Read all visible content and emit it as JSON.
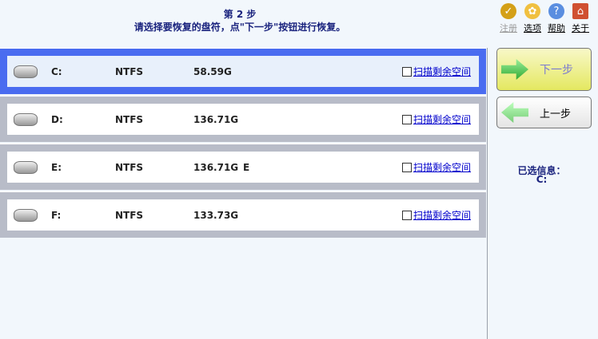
{
  "header": {
    "step": "第 2 步",
    "instruction": "请选择要恢复的盘符，点\"下一步\"按钮进行恢复。"
  },
  "toolbar": [
    {
      "label": "注册",
      "icon": "cart-icon",
      "disabled": true,
      "color": "#d4a017"
    },
    {
      "label": "选项",
      "icon": "gear-icon",
      "color": "#f0c040"
    },
    {
      "label": "帮助",
      "icon": "help-icon",
      "color": "#5a8ee0"
    },
    {
      "label": "关于",
      "icon": "home-icon",
      "color": "#d05030"
    }
  ],
  "drives": [
    {
      "letter": "C:",
      "fs": "NTFS",
      "size": "58.59G",
      "label": "",
      "scan": "扫描剩余空间",
      "selected": true,
      "checked": false
    },
    {
      "letter": "D:",
      "fs": "NTFS",
      "size": "136.71G",
      "label": "",
      "scan": "扫描剩余空间",
      "checked": false
    },
    {
      "letter": "E:",
      "fs": "NTFS",
      "size": "136.71G",
      "label": "E",
      "scan": "扫描剩余空间",
      "checked": false
    },
    {
      "letter": "F:",
      "fs": "NTFS",
      "size": "133.73G",
      "label": "",
      "scan": "扫描剩余空间",
      "checked": false
    }
  ],
  "buttons": {
    "next": "下一步",
    "prev": "上一步"
  },
  "selected_info": {
    "label": "已选信息：",
    "value": "C:"
  },
  "colors": {
    "selected_border": "#4a6cf0",
    "row_band": "#b8bcc8",
    "title": "#1a237e"
  }
}
